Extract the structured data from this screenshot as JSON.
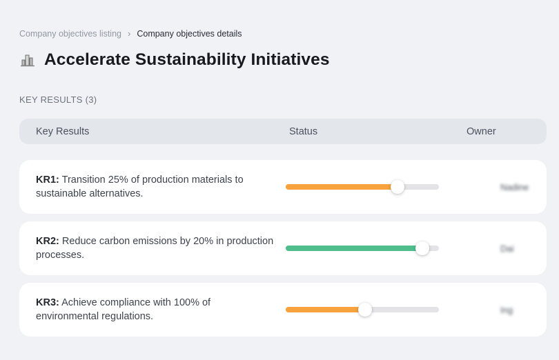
{
  "breadcrumb": {
    "separator": "›",
    "items": [
      {
        "label": "Company objectives listing"
      },
      {
        "label": "Company objectives details"
      }
    ]
  },
  "header": {
    "icon": "company-buildings-icon",
    "title": "Accelerate Sustainability Initiatives"
  },
  "section": {
    "label": "KEY RESULTS (3)"
  },
  "table": {
    "columns": {
      "key_results": "Key Results",
      "status": "Status",
      "owner": "Owner"
    },
    "rows": [
      {
        "id": "KR1:",
        "text": "Transition 25% of production materials to sustainable alternatives.",
        "progress": 73,
        "progress_color": "#F7A23C",
        "owner": "Nadine"
      },
      {
        "id": "KR2:",
        "text": "Reduce carbon emissions by 20% in production processes.",
        "progress": 89,
        "progress_color": "#4FBE8C",
        "owner": "Dai"
      },
      {
        "id": "KR3:",
        "text": "Achieve compliance with 100% of environmental regulations.",
        "progress": 52,
        "progress_color": "#F7A23C",
        "owner": "Ing"
      }
    ]
  },
  "colors": {
    "accent_orange": "#F7A23C",
    "accent_green": "#4FBE8C",
    "track_gray": "#E4E4E7",
    "header_row_bg": "#E3E7EC",
    "page_bg": "#F1F2F5"
  }
}
